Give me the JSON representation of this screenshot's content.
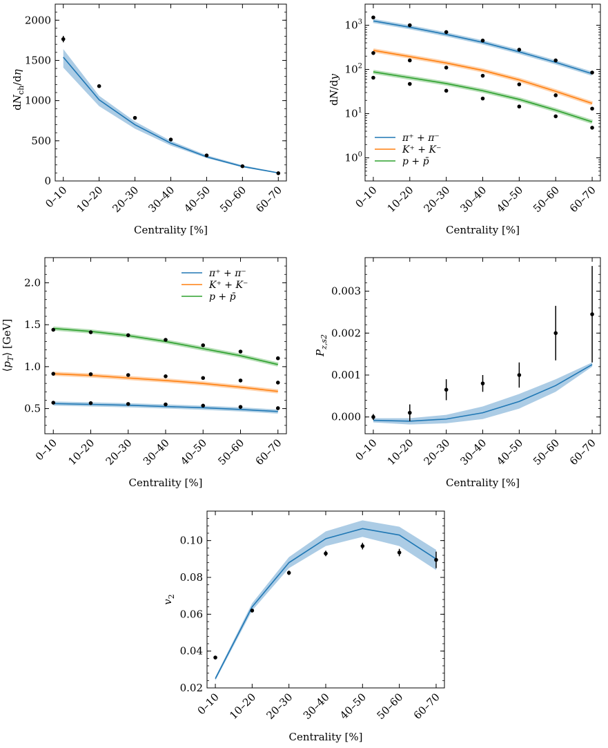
{
  "xtick_labels": [
    "0–10",
    "10–20",
    "20–30",
    "30–40",
    "40–50",
    "50–60",
    "60–70"
  ],
  "colors": {
    "pion": "#1f77b4",
    "kaon": "#ff7f0e",
    "proton": "#2ca02c",
    "band": "#9ec3e0",
    "points": "#000000"
  },
  "chart_data": [
    {
      "type": "line",
      "xlabel": "Centrality [%]",
      "ylabel": "dN_ch/dη",
      "ylim": [
        0,
        2200
      ],
      "yticks": [
        0,
        500,
        1000,
        1500,
        2000
      ],
      "ytick_labels": [
        "0",
        "500",
        "1000",
        "1500",
        "2000"
      ],
      "series": [
        {
          "key": "pion",
          "model": [
            1540,
            1010,
            700,
            470,
            300,
            180,
            100
          ],
          "band_low": [
            1410,
            930,
            650,
            440,
            285,
            170,
            95
          ],
          "band_high": [
            1640,
            1060,
            740,
            500,
            320,
            195,
            107
          ],
          "data": [
            1765,
            1180,
            785,
            515,
            318,
            183,
            96
          ],
          "err": [
            40,
            20,
            10,
            8,
            5,
            4,
            3
          ]
        }
      ]
    },
    {
      "type": "line",
      "scale": "log",
      "xlabel": "Centrality [%]",
      "ylabel": "dN/dy",
      "ylim": [
        0.3,
        3000
      ],
      "yticks": [
        1,
        10,
        100,
        1000
      ],
      "ytick_labels": [
        "10^0",
        "10^1",
        "10^2",
        "10^3"
      ],
      "legend": "center-left",
      "series": [
        {
          "key": "pion",
          "name": "π⁺ + π⁻",
          "model": [
            1250,
            900,
            620,
            410,
            250,
            145,
            80
          ],
          "data": [
            1500,
            1000,
            700,
            450,
            280,
            160,
            85
          ]
        },
        {
          "key": "kaon",
          "name": "K⁺ + K⁻",
          "model": [
            270,
            195,
            140,
            95,
            58,
            32,
            17
          ],
          "data": [
            235,
            160,
            110,
            72,
            46,
            26,
            13
          ]
        },
        {
          "key": "proton",
          "name": "p + p̄",
          "model": [
            88,
            65,
            48,
            33,
            21,
            12,
            6.5
          ],
          "data": [
            65,
            47,
            33,
            22,
            14.5,
            8.7,
            4.8
          ]
        }
      ]
    },
    {
      "type": "line",
      "xlabel": "Centrality [%]",
      "ylabel": "⟨pT⟩ [GeV]",
      "ylim": [
        0.2,
        2.3
      ],
      "yticks": [
        0.5,
        1.0,
        1.5,
        2.0
      ],
      "ytick_labels": [
        "0.5",
        "1.0",
        "1.5",
        "2.0"
      ],
      "legend": "top-right",
      "series": [
        {
          "key": "pion",
          "name": "π⁺ + π⁻",
          "model": [
            0.56,
            0.55,
            0.54,
            0.525,
            0.51,
            0.49,
            0.465
          ],
          "data": [
            0.57,
            0.565,
            0.555,
            0.55,
            0.535,
            0.52,
            0.505
          ]
        },
        {
          "key": "kaon",
          "name": "K⁺ + K⁻",
          "model": [
            0.915,
            0.895,
            0.865,
            0.835,
            0.8,
            0.755,
            0.705
          ],
          "data": [
            0.915,
            0.91,
            0.9,
            0.885,
            0.865,
            0.835,
            0.81
          ]
        },
        {
          "key": "proton",
          "name": "p + p̄",
          "model": [
            1.455,
            1.42,
            1.37,
            1.3,
            1.215,
            1.13,
            1.025
          ],
          "data": [
            1.44,
            1.41,
            1.375,
            1.32,
            1.255,
            1.18,
            1.1
          ]
        }
      ]
    },
    {
      "type": "line",
      "xlabel": "Centrality [%]",
      "ylabel": "P_z,s2",
      "ylim": [
        -0.0004,
        0.0038
      ],
      "yticks": [
        0.0,
        0.001,
        0.002,
        0.003
      ],
      "ytick_labels": [
        "0.000",
        "0.001",
        "0.002",
        "0.003"
      ],
      "series": [
        {
          "key": "pion",
          "model": [
            -8e-05,
            -0.0001,
            -5e-05,
            0.0001,
            0.00037,
            0.00075,
            0.00125
          ],
          "band_low": [
            -0.00013,
            -0.00018,
            -0.00015,
            -5e-05,
            0.0002,
            0.0006,
            0.0012
          ],
          "band_high": [
            -3e-05,
            -3e-05,
            5e-05,
            0.00025,
            0.00055,
            0.0009,
            0.0013
          ],
          "data": [
            0.0,
            0.0001,
            0.00065,
            0.0008,
            0.001,
            0.002,
            0.00245
          ],
          "err": [
            7e-05,
            0.0002,
            0.00025,
            0.0002,
            0.0003,
            0.00065,
            0.00115
          ]
        }
      ]
    },
    {
      "type": "line",
      "xlabel": "Centrality [%]",
      "ylabel": "v2",
      "ylim": [
        0.02,
        0.116
      ],
      "yticks": [
        0.02,
        0.04,
        0.06,
        0.08,
        0.1
      ],
      "ytick_labels": [
        "0.02",
        "0.04",
        "0.06",
        "0.08",
        "0.10"
      ],
      "series": [
        {
          "key": "pion",
          "model": [
            0.025,
            0.064,
            0.088,
            0.101,
            0.1065,
            0.103,
            0.09
          ],
          "band_low": [
            0.024,
            0.062,
            0.085,
            0.097,
            0.102,
            0.097,
            0.084
          ],
          "band_high": [
            0.026,
            0.066,
            0.091,
            0.105,
            0.111,
            0.1075,
            0.095
          ],
          "data": [
            0.0365,
            0.062,
            0.0825,
            0.093,
            0.097,
            0.0935,
            0.0895
          ],
          "err": [
            0.001,
            0.001,
            0.0012,
            0.0015,
            0.0018,
            0.002,
            0.0045
          ]
        }
      ]
    }
  ]
}
